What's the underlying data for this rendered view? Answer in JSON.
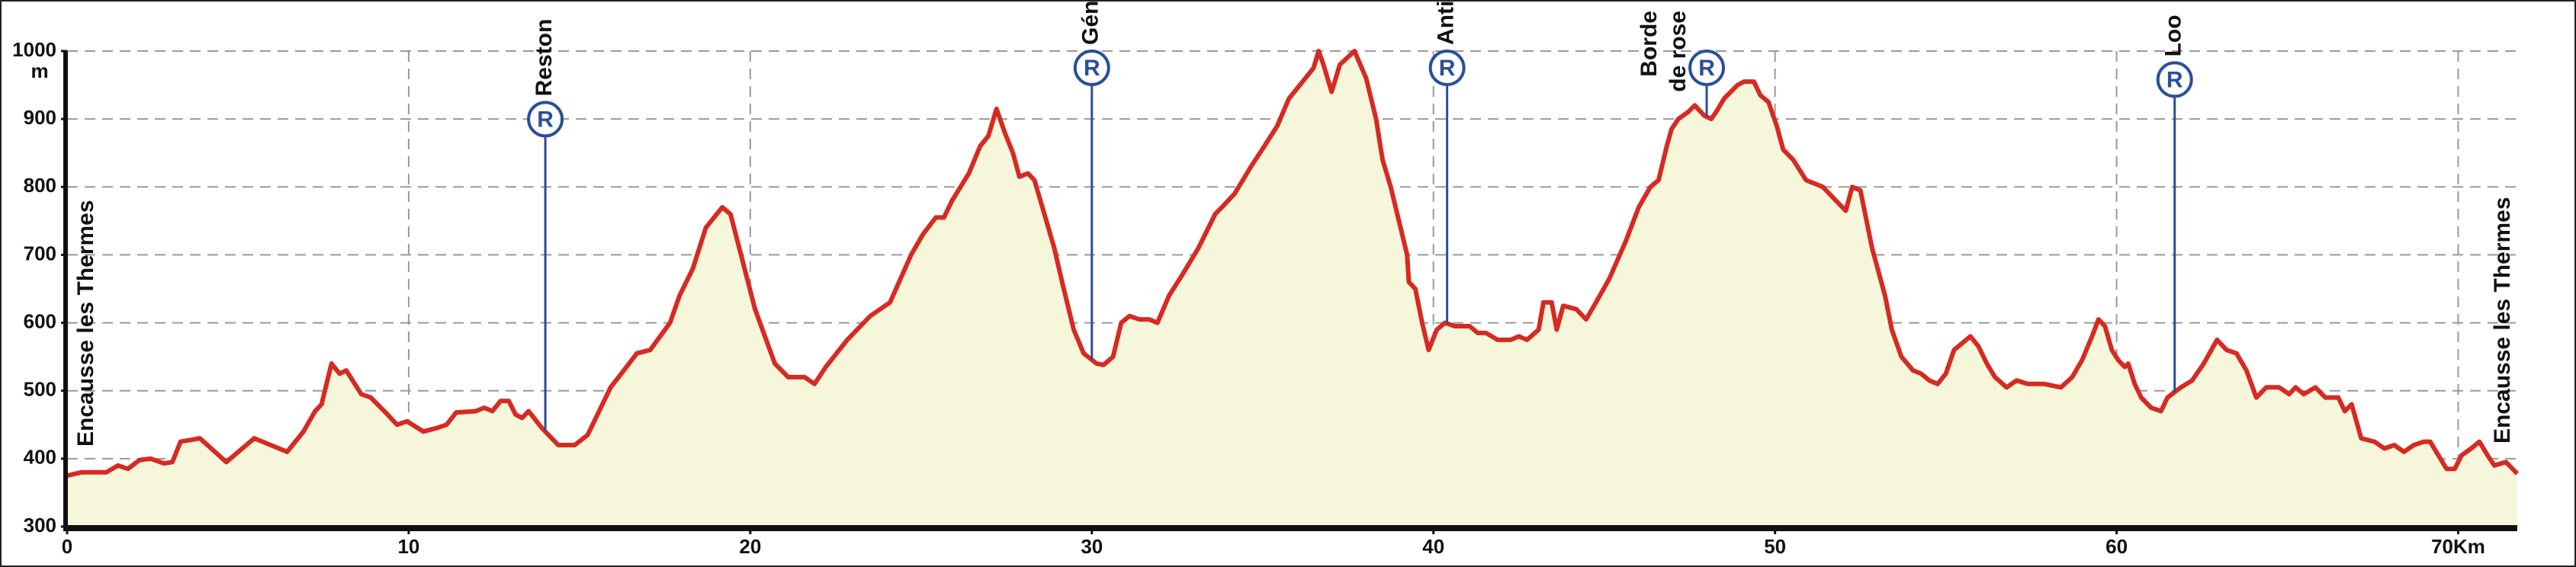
{
  "chart_data": {
    "type": "area",
    "y_unit": "m",
    "xlim": [
      0,
      71.73
    ],
    "ylim": [
      300,
      1000
    ],
    "xticks": [
      0,
      10,
      20,
      30,
      40,
      50,
      60,
      {
        "value": 70,
        "label": "70Km"
      }
    ],
    "yticks": [
      300,
      400,
      500,
      600,
      700,
      800,
      900,
      1000
    ],
    "grid": true,
    "start_label": "Encausse les Thermes",
    "end_label": "Encausse les Thermes",
    "marker_symbol": "R",
    "waypoints": [
      {
        "lines": [
          "Reston"
        ],
        "km": 14.0
      },
      {
        "lines": [
          "Génos"
        ],
        "km": 30.0
      },
      {
        "lines": [
          "Antichan"
        ],
        "km": 40.4
      },
      {
        "lines": [
          "Borde",
          "de rose"
        ],
        "km": 48.0
      },
      {
        "lines": [
          "Loo"
        ],
        "km": 61.7
      }
    ],
    "x": [
      0,
      0.43,
      1.15,
      1.49,
      1.78,
      2.12,
      2.45,
      2.84,
      3.08,
      3.32,
      3.89,
      4.66,
      5.48,
      5.96,
      6.44,
      6.92,
      7.26,
      7.45,
      7.74,
      7.98,
      8.17,
      8.61,
      8.89,
      9.38,
      9.66,
      9.95,
      10.43,
      10.82,
      11.11,
      11.39,
      11.97,
      12.21,
      12.45,
      12.69,
      12.93,
      13.13,
      13.32,
      13.51,
      13.9,
      14.38,
      14.86,
      15.24,
      15.91,
      16.3,
      16.68,
      17.07,
      17.65,
      17.93,
      18.32,
      18.7,
      19.18,
      19.42,
      20.14,
      20.72,
      21.11,
      21.59,
      21.88,
      22.21,
      22.84,
      23.51,
      24.09,
      24.71,
      25.05,
      25.43,
      25.67,
      25.91,
      26.4,
      26.73,
      26.97,
      27.21,
      27.45,
      27.69,
      27.88,
      28.13,
      28.32,
      28.61,
      28.9,
      29.13,
      29.47,
      29.76,
      30.14,
      30.34,
      30.62,
      30.86,
      31.1,
      31.39,
      31.68,
      31.92,
      32.26,
      32.64,
      33.12,
      33.61,
      33.9,
      34.18,
      34.66,
      35.05,
      35.43,
      35.77,
      36.01,
      36.25,
      36.49,
      36.64,
      36.78,
      37.02,
      37.26,
      37.69,
      38.03,
      38.32,
      38.51,
      38.75,
      38.99,
      39.23,
      39.28,
      39.47,
      39.67,
      39.86,
      40.1,
      40.34,
      40.63,
      41.06,
      41.3,
      41.54,
      41.88,
      42.26,
      42.5,
      42.74,
      43.08,
      43.22,
      43.46,
      43.61,
      43.8,
      44.18,
      44.47,
      44.76,
      45.15,
      45.63,
      46.01,
      46.35,
      46.59,
      46.83,
      46.97,
      47.17,
      47.45,
      47.65,
      47.93,
      48.13,
      48.27,
      48.51,
      48.9,
      49.09,
      49.38,
      49.57,
      49.81,
      50.05,
      50.24,
      50.53,
      50.91,
      51.4,
      51.78,
      52.07,
      52.26,
      52.5,
      52.84,
      53.22,
      53.42,
      53.7,
      54.04,
      54.28,
      54.52,
      54.76,
      55.0,
      55.24,
      55.48,
      55.72,
      55.96,
      56.2,
      56.44,
      56.78,
      57.07,
      57.4,
      57.88,
      58.37,
      58.7,
      58.99,
      59.28,
      59.47,
      59.66,
      59.86,
      60.05,
      60.24,
      60.34,
      60.53,
      60.72,
      61.01,
      61.3,
      61.49,
      61.88,
      62.21,
      62.55,
      62.94,
      63.22,
      63.51,
      63.8,
      64.09,
      64.38,
      64.76,
      65.05,
      65.24,
      65.48,
      65.82,
      66.11,
      66.49,
      66.68,
      66.88,
      67.16,
      67.55,
      67.84,
      68.13,
      68.41,
      68.7,
      68.99,
      69.18,
      69.42,
      69.66,
      69.9,
      70.1,
      70.38,
      70.62,
      70.86,
      71.06,
      71.4,
      71.73
    ],
    "series": [
      {
        "color": "#d62a22",
        "fill": "#f6f6da",
        "values": [
          375,
          380,
          380,
          390,
          385,
          398,
          400,
          393,
          395,
          425,
          430,
          395,
          430,
          420,
          410,
          440,
          470,
          480,
          540,
          525,
          530,
          495,
          490,
          465,
          450,
          455,
          440,
          445,
          450,
          468,
          470,
          475,
          470,
          485,
          485,
          465,
          460,
          470,
          445,
          420,
          420,
          435,
          505,
          530,
          555,
          560,
          600,
          640,
          680,
          740,
          770,
          760,
          620,
          540,
          520,
          520,
          510,
          535,
          575,
          610,
          630,
          700,
          730,
          755,
          755,
          780,
          820,
          860,
          875,
          915,
          880,
          850,
          815,
          820,
          810,
          760,
          710,
          660,
          590,
          555,
          540,
          538,
          550,
          600,
          610,
          605,
          605,
          600,
          640,
          670,
          710,
          760,
          775,
          790,
          830,
          860,
          890,
          930,
          945,
          960,
          975,
          1000,
          980,
          940,
          980,
          1000,
          960,
          900,
          840,
          800,
          750,
          700,
          660,
          650,
          600,
          560,
          590,
          600,
          595,
          595,
          585,
          585,
          575,
          575,
          580,
          575,
          590,
          630,
          630,
          590,
          625,
          620,
          605,
          630,
          665,
          720,
          770,
          800,
          810,
          860,
          885,
          900,
          910,
          920,
          905,
          900,
          910,
          930,
          950,
          955,
          955,
          935,
          925,
          890,
          855,
          840,
          810,
          800,
          780,
          765,
          800,
          795,
          710,
          640,
          590,
          550,
          530,
          525,
          515,
          510,
          525,
          560,
          570,
          580,
          565,
          540,
          520,
          505,
          515,
          510,
          510,
          505,
          520,
          545,
          580,
          605,
          595,
          560,
          545,
          535,
          540,
          510,
          490,
          475,
          470,
          490,
          505,
          515,
          540,
          575,
          560,
          555,
          530,
          490,
          505,
          505,
          495,
          505,
          495,
          505,
          490,
          490,
          470,
          480,
          430,
          425,
          415,
          420,
          410,
          420,
          425,
          425,
          405,
          385,
          385,
          405,
          415,
          425,
          405,
          390,
          395,
          378
        ]
      }
    ]
  }
}
